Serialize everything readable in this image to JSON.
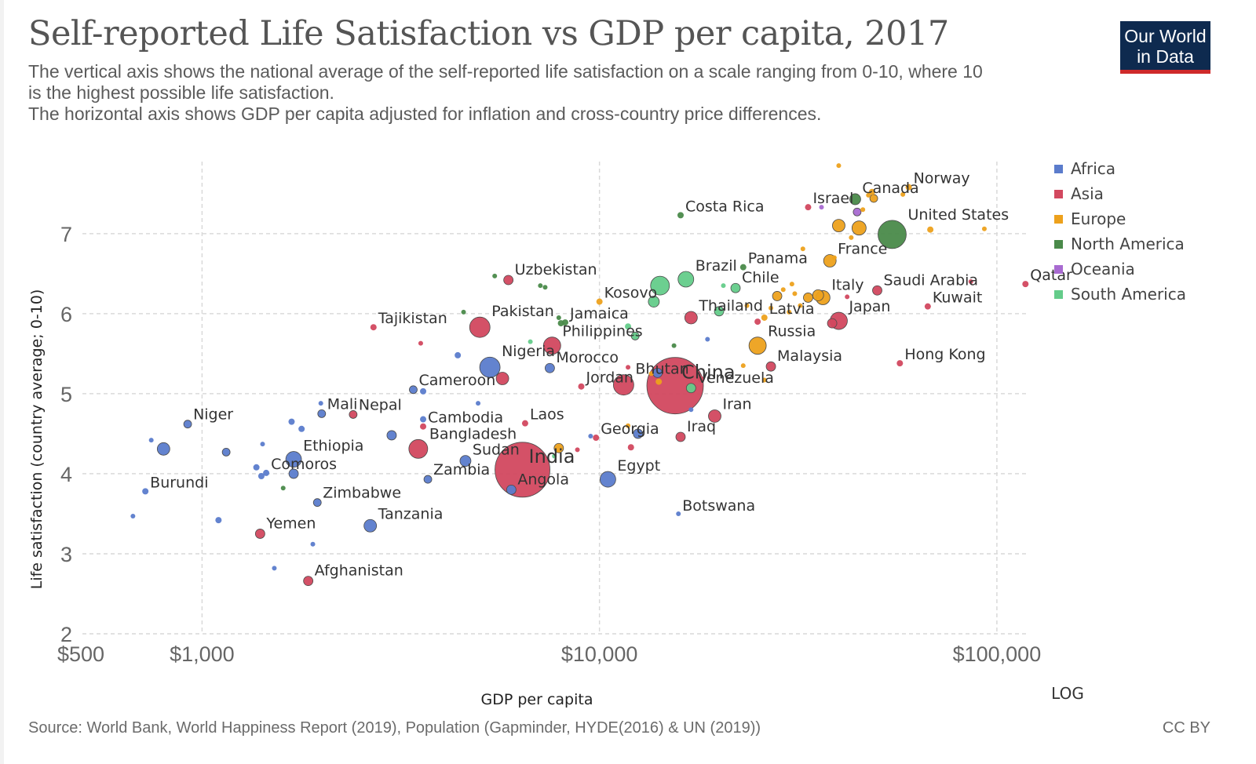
{
  "header": {
    "title": "Self-reported Life Satisfaction vs GDP per capita, 2017",
    "subtitle_lines": [
      "The vertical axis shows the national average of the self-reported life satisfaction on a scale ranging from 0-10, where 10",
      "is the highest possible life satisfaction.",
      "The horizontal axis shows GDP per capita adjusted for inflation and cross-country price differences."
    ]
  },
  "logo": {
    "line1": "Our World",
    "line2": "in Data",
    "bg": "#0e2a4f",
    "accent": "#cf2a2a"
  },
  "footer": {
    "source": "Source: World Bank, World Happiness Report (2019), Population (Gapminder, HYDE(2016) & UN (2019))",
    "license": "CC BY"
  },
  "chart_data": {
    "type": "scatter",
    "title": "Self-reported Life Satisfaction vs GDP per capita, 2017",
    "xlabel": "GDP per capita",
    "ylabel": "Life satisfaction (country average; 0-10)",
    "x_scale": "log",
    "x_scale_label": "LOG",
    "xlim": [
      500,
      120000
    ],
    "ylim": [
      2,
      7.9
    ],
    "x_ticks": [
      {
        "value": 500,
        "label": "$500"
      },
      {
        "value": 1000,
        "label": "$1,000"
      },
      {
        "value": 10000,
        "label": "$10,000"
      },
      {
        "value": 100000,
        "label": "$100,000"
      }
    ],
    "y_ticks": [
      {
        "value": 2,
        "label": "2"
      },
      {
        "value": 3,
        "label": "3"
      },
      {
        "value": 4,
        "label": "4"
      },
      {
        "value": 5,
        "label": "5"
      },
      {
        "value": 6,
        "label": "6"
      },
      {
        "value": 7,
        "label": "7"
      }
    ],
    "grid": true,
    "legend_position": "right",
    "groups": [
      {
        "name": "Africa",
        "color": "#5b7ccc"
      },
      {
        "name": "Asia",
        "color": "#d2485f"
      },
      {
        "name": "Europe",
        "color": "#eda11c"
      },
      {
        "name": "North America",
        "color": "#4a8a4a"
      },
      {
        "name": "Oceania",
        "color": "#a86ad1"
      },
      {
        "name": "South America",
        "color": "#64cc8a"
      }
    ],
    "points": [
      {
        "label": "Costa Rica",
        "x": 16000,
        "y": 7.23,
        "group": "North America",
        "r": 4
      },
      {
        "label": "Israel",
        "x": 33500,
        "y": 7.33,
        "group": "Asia",
        "r": 4
      },
      {
        "label": "Canada",
        "x": 44000,
        "y": 7.43,
        "group": "North America",
        "r": 7
      },
      {
        "label": "Norway",
        "x": 60000,
        "y": 7.58,
        "group": "Europe",
        "r": 4
      },
      {
        "label": "United States",
        "x": 54500,
        "y": 6.99,
        "group": "North America",
        "r": 18
      },
      {
        "label": "France",
        "x": 38000,
        "y": 6.66,
        "group": "Europe",
        "r": 8
      },
      {
        "label": "Uzbekistan",
        "x": 5900,
        "y": 6.42,
        "group": "Asia",
        "r": 6
      },
      {
        "label": "Brazil",
        "x": 16500,
        "y": 6.43,
        "group": "South America",
        "r": 10
      },
      {
        "label": "Panama",
        "x": 23000,
        "y": 6.58,
        "group": "North America",
        "r": 4
      },
      {
        "label": "Chile",
        "x": 22000,
        "y": 6.32,
        "group": "South America",
        "r": 6
      },
      {
        "label": "Saudi Arabia",
        "x": 50000,
        "y": 6.29,
        "group": "Asia",
        "r": 6
      },
      {
        "label": "Qatar",
        "x": 118000,
        "y": 6.37,
        "group": "Asia",
        "r": 4
      },
      {
        "label": "Kosovo",
        "x": 10000,
        "y": 6.15,
        "group": "Europe",
        "r": 4
      },
      {
        "label": "Italy",
        "x": 36500,
        "y": 6.2,
        "group": "Europe",
        "r": 9
      },
      {
        "label": "Kuwait",
        "x": 67000,
        "y": 6.09,
        "group": "Asia",
        "r": 4
      },
      {
        "label": "Thailand",
        "x": 17000,
        "y": 5.95,
        "group": "Asia",
        "r": 8
      },
      {
        "label": "Latvia",
        "x": 26000,
        "y": 5.95,
        "group": "Europe",
        "r": 4
      },
      {
        "label": "Japan",
        "x": 40000,
        "y": 5.91,
        "group": "Asia",
        "r": 11
      },
      {
        "label": "Tajikistan",
        "x": 2700,
        "y": 5.83,
        "group": "Asia",
        "r": 4
      },
      {
        "label": "Pakistan",
        "x": 5000,
        "y": 5.83,
        "group": "Asia",
        "r": 13
      },
      {
        "label": "Jamaica",
        "x": 8200,
        "y": 5.89,
        "group": "North America",
        "r": 4
      },
      {
        "label": "Philippines",
        "x": 7600,
        "y": 5.6,
        "group": "Asia",
        "r": 11
      },
      {
        "label": "Russia",
        "x": 25000,
        "y": 5.6,
        "group": "Europe",
        "r": 11
      },
      {
        "label": "Nigeria",
        "x": 5300,
        "y": 5.33,
        "group": "Africa",
        "r": 13
      },
      {
        "label": "Morocco",
        "x": 7500,
        "y": 5.32,
        "group": "Africa",
        "r": 6
      },
      {
        "label": "China",
        "x": 15500,
        "y": 5.1,
        "group": "Asia",
        "r": 36
      },
      {
        "label": "Malaysia",
        "x": 27000,
        "y": 5.34,
        "group": "Asia",
        "r": 6
      },
      {
        "label": "Hong Kong",
        "x": 57000,
        "y": 5.38,
        "group": "Asia",
        "r": 4
      },
      {
        "label": "Cameroon",
        "x": 3400,
        "y": 5.05,
        "group": "Africa",
        "r": 5
      },
      {
        "label": "Bhutan",
        "x": 11500,
        "y": 5.11,
        "group": "Asia",
        "r": 13
      },
      {
        "label": "Venezuela",
        "x": 17000,
        "y": 5.07,
        "group": "South America",
        "r": 6
      },
      {
        "label": "Jordan",
        "x": 9000,
        "y": 5.09,
        "group": "Asia",
        "r": 4
      },
      {
        "label": "Niger",
        "x": 920,
        "y": 4.62,
        "group": "Africa",
        "r": 5
      },
      {
        "label": "Mali",
        "x": 2000,
        "y": 4.75,
        "group": "Africa",
        "r": 5
      },
      {
        "label": "Nepal",
        "x": 2400,
        "y": 4.74,
        "group": "Asia",
        "r": 5
      },
      {
        "label": "Cambodia",
        "x": 3600,
        "y": 4.59,
        "group": "Asia",
        "r": 4
      },
      {
        "label": "Laos",
        "x": 6500,
        "y": 4.63,
        "group": "Asia",
        "r": 4
      },
      {
        "label": "Iran",
        "x": 19500,
        "y": 4.72,
        "group": "Asia",
        "r": 8
      },
      {
        "label": "Bangladesh",
        "x": 3500,
        "y": 4.31,
        "group": "Asia",
        "r": 12
      },
      {
        "label": "India",
        "x": 6400,
        "y": 4.05,
        "group": "Asia",
        "r": 35
      },
      {
        "label": "Georgia",
        "x": 9800,
        "y": 4.45,
        "group": "Asia",
        "r": 4
      },
      {
        "label": "Iraq",
        "x": 16000,
        "y": 4.46,
        "group": "Asia",
        "r": 6
      },
      {
        "label": "Ethiopia",
        "x": 1700,
        "y": 4.18,
        "group": "Africa",
        "r": 10
      },
      {
        "label": "Sudan",
        "x": 4600,
        "y": 4.16,
        "group": "Africa",
        "r": 7
      },
      {
        "label": "Comoros",
        "x": 1450,
        "y": 4.01,
        "group": "Africa",
        "r": 4
      },
      {
        "label": "Zambia",
        "x": 3700,
        "y": 3.93,
        "group": "Africa",
        "r": 5
      },
      {
        "label": "Angola",
        "x": 6000,
        "y": 3.8,
        "group": "Africa",
        "r": 6
      },
      {
        "label": "Egypt",
        "x": 10500,
        "y": 3.93,
        "group": "Africa",
        "r": 10
      },
      {
        "label": "Burundi",
        "x": 720,
        "y": 3.78,
        "group": "Africa",
        "r": 4
      },
      {
        "label": "Zimbabwe",
        "x": 1950,
        "y": 3.64,
        "group": "Africa",
        "r": 5
      },
      {
        "label": "Botswana",
        "x": 15800,
        "y": 3.5,
        "group": "Africa",
        "r": 3
      },
      {
        "label": "Tanzania",
        "x": 2650,
        "y": 3.35,
        "group": "Africa",
        "r": 8
      },
      {
        "label": "Yemen",
        "x": 1400,
        "y": 3.25,
        "group": "Asia",
        "r": 6
      },
      {
        "label": "Afghanistan",
        "x": 1850,
        "y": 2.66,
        "group": "Asia",
        "r": 6
      },
      {
        "x": 670,
        "y": 3.47,
        "group": "Africa",
        "r": 3
      },
      {
        "x": 800,
        "y": 4.31,
        "group": "Africa",
        "r": 8
      },
      {
        "x": 745,
        "y": 4.42,
        "group": "Africa",
        "r": 3
      },
      {
        "x": 1100,
        "y": 3.42,
        "group": "Africa",
        "r": 4
      },
      {
        "x": 1150,
        "y": 4.27,
        "group": "Africa",
        "r": 5
      },
      {
        "x": 1420,
        "y": 4.37,
        "group": "Africa",
        "r": 3
      },
      {
        "x": 1680,
        "y": 4.65,
        "group": "Africa",
        "r": 4
      },
      {
        "x": 1780,
        "y": 4.56,
        "group": "Africa",
        "r": 4
      },
      {
        "x": 1700,
        "y": 4.0,
        "group": "Africa",
        "r": 6
      },
      {
        "x": 1410,
        "y": 3.97,
        "group": "Africa",
        "r": 4
      },
      {
        "x": 1370,
        "y": 4.08,
        "group": "Africa",
        "r": 4
      },
      {
        "x": 1900,
        "y": 3.12,
        "group": "Africa",
        "r": 3
      },
      {
        "x": 1520,
        "y": 2.82,
        "group": "Africa",
        "r": 3
      },
      {
        "x": 1600,
        "y": 3.82,
        "group": "North America",
        "r": 3
      },
      {
        "x": 1990,
        "y": 4.88,
        "group": "Africa",
        "r": 3
      },
      {
        "x": 3000,
        "y": 4.48,
        "group": "Africa",
        "r": 6
      },
      {
        "x": 3600,
        "y": 5.03,
        "group": "Africa",
        "r": 4
      },
      {
        "x": 3600,
        "y": 4.68,
        "group": "Africa",
        "r": 4
      },
      {
        "x": 4400,
        "y": 5.48,
        "group": "Africa",
        "r": 4
      },
      {
        "x": 4950,
        "y": 4.88,
        "group": "Africa",
        "r": 3
      },
      {
        "x": 3550,
        "y": 5.63,
        "group": "Asia",
        "r": 3
      },
      {
        "x": 4550,
        "y": 6.02,
        "group": "North America",
        "r": 3
      },
      {
        "x": 5450,
        "y": 6.47,
        "group": "North America",
        "r": 3
      },
      {
        "x": 7100,
        "y": 6.35,
        "group": "North America",
        "r": 3
      },
      {
        "x": 7300,
        "y": 6.33,
        "group": "North America",
        "r": 3
      },
      {
        "x": 5700,
        "y": 5.19,
        "group": "Asia",
        "r": 8
      },
      {
        "x": 6700,
        "y": 5.65,
        "group": "South America",
        "r": 3
      },
      {
        "x": 7700,
        "y": 4.22,
        "group": "South America",
        "r": 3
      },
      {
        "x": 7900,
        "y": 4.32,
        "group": "Europe",
        "r": 6
      },
      {
        "x": 8800,
        "y": 4.3,
        "group": "Asia",
        "r": 3
      },
      {
        "x": 9500,
        "y": 4.47,
        "group": "Africa",
        "r": 3
      },
      {
        "x": 7900,
        "y": 5.95,
        "group": "North America",
        "r": 3
      },
      {
        "x": 8000,
        "y": 5.88,
        "group": "North America",
        "r": 4
      },
      {
        "x": 12300,
        "y": 5.72,
        "group": "South America",
        "r": 5
      },
      {
        "x": 11800,
        "y": 5.84,
        "group": "South America",
        "r": 4
      },
      {
        "x": 13700,
        "y": 6.15,
        "group": "South America",
        "r": 7
      },
      {
        "x": 14200,
        "y": 6.35,
        "group": "South America",
        "r": 12
      },
      {
        "x": 12000,
        "y": 4.33,
        "group": "Asia",
        "r": 4
      },
      {
        "x": 11800,
        "y": 5.33,
        "group": "Asia",
        "r": 3
      },
      {
        "x": 11800,
        "y": 4.6,
        "group": "Europe",
        "r": 3
      },
      {
        "x": 12500,
        "y": 4.5,
        "group": "Africa",
        "r": 6
      },
      {
        "x": 13500,
        "y": 5.25,
        "group": "Europe",
        "r": 3
      },
      {
        "x": 14100,
        "y": 5.15,
        "group": "Europe",
        "r": 4
      },
      {
        "x": 14000,
        "y": 5.26,
        "group": "Africa",
        "r": 6
      },
      {
        "x": 15400,
        "y": 5.6,
        "group": "North America",
        "r": 3
      },
      {
        "x": 17000,
        "y": 4.8,
        "group": "Africa",
        "r": 3
      },
      {
        "x": 18000,
        "y": 5.18,
        "group": "Asia",
        "r": 4
      },
      {
        "x": 18700,
        "y": 5.68,
        "group": "Africa",
        "r": 3
      },
      {
        "x": 20000,
        "y": 6.03,
        "group": "South America",
        "r": 6
      },
      {
        "x": 20500,
        "y": 6.35,
        "group": "South America",
        "r": 3
      },
      {
        "x": 23500,
        "y": 6.1,
        "group": "Europe",
        "r": 3
      },
      {
        "x": 23000,
        "y": 5.35,
        "group": "Europe",
        "r": 3
      },
      {
        "x": 25000,
        "y": 5.9,
        "group": "Asia",
        "r": 4
      },
      {
        "x": 26000,
        "y": 5.17,
        "group": "Europe",
        "r": 3
      },
      {
        "x": 27000,
        "y": 6.07,
        "group": "Europe",
        "r": 3
      },
      {
        "x": 28000,
        "y": 6.22,
        "group": "Europe",
        "r": 6
      },
      {
        "x": 29000,
        "y": 6.3,
        "group": "Europe",
        "r": 3
      },
      {
        "x": 30000,
        "y": 6.02,
        "group": "Europe",
        "r": 3
      },
      {
        "x": 30500,
        "y": 6.37,
        "group": "Europe",
        "r": 3
      },
      {
        "x": 31000,
        "y": 6.25,
        "group": "Europe",
        "r": 3
      },
      {
        "x": 32500,
        "y": 6.81,
        "group": "Europe",
        "r": 3
      },
      {
        "x": 32000,
        "y": 6.1,
        "group": "Europe",
        "r": 3
      },
      {
        "x": 33500,
        "y": 6.2,
        "group": "Europe",
        "r": 6
      },
      {
        "x": 35500,
        "y": 6.23,
        "group": "Europe",
        "r": 7
      },
      {
        "x": 38500,
        "y": 5.88,
        "group": "Asia",
        "r": 6
      },
      {
        "x": 40000,
        "y": 7.85,
        "group": "Europe",
        "r": 3
      },
      {
        "x": 40000,
        "y": 7.1,
        "group": "Europe",
        "r": 8
      },
      {
        "x": 39000,
        "y": 6.7,
        "group": "Europe",
        "r": 3
      },
      {
        "x": 42000,
        "y": 6.21,
        "group": "Asia",
        "r": 3
      },
      {
        "x": 43000,
        "y": 6.95,
        "group": "Europe",
        "r": 3
      },
      {
        "x": 45000,
        "y": 7.07,
        "group": "Europe",
        "r": 9
      },
      {
        "x": 44500,
        "y": 7.27,
        "group": "Oceania",
        "r": 5
      },
      {
        "x": 46000,
        "y": 7.3,
        "group": "Europe",
        "r": 3
      },
      {
        "x": 47500,
        "y": 7.48,
        "group": "Europe",
        "r": 3
      },
      {
        "x": 48500,
        "y": 7.52,
        "group": "Europe",
        "r": 4
      },
      {
        "x": 49000,
        "y": 7.44,
        "group": "Europe",
        "r": 5
      },
      {
        "x": 58000,
        "y": 7.49,
        "group": "Europe",
        "r": 3
      },
      {
        "x": 68000,
        "y": 7.05,
        "group": "Europe",
        "r": 4
      },
      {
        "x": 93000,
        "y": 7.06,
        "group": "Europe",
        "r": 3
      },
      {
        "x": 86000,
        "y": 6.4,
        "group": "Asia",
        "r": 3
      },
      {
        "x": 36200,
        "y": 7.33,
        "group": "Oceania",
        "r": 3
      }
    ]
  }
}
